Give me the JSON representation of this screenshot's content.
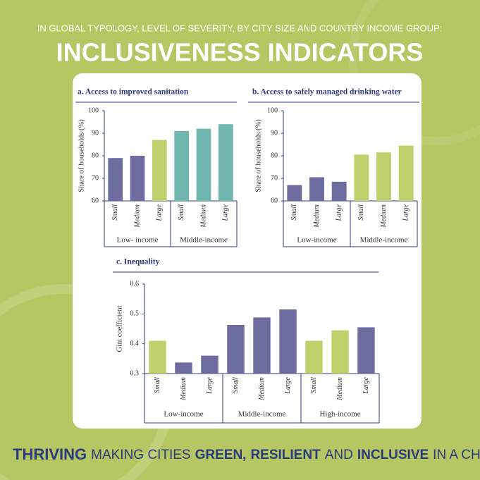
{
  "header": {
    "kicker": "IN GLOBAL TYPOLOGY, LEVEL OF SEVERITY, BY CITY SIZE AND COUNTRY INCOME GROUP:",
    "title": "INCLUSIVENESS INDICATORS"
  },
  "footer": {
    "segments": [
      {
        "text": "THRIVING",
        "bold": true
      },
      {
        "text": "MAKING CITIES",
        "bold": false
      },
      {
        "text": "GREEN,",
        "bold": true
      },
      {
        "text": "RESILIENT",
        "bold": true
      },
      {
        "text": "AND",
        "bold": false
      },
      {
        "text": "INCLUSIVE",
        "bold": true
      },
      {
        "text": "IN A CHANGING CLIMATE",
        "bold": false
      }
    ]
  },
  "chart_data": [
    {
      "type": "bar",
      "title": "a. Access to improved sanitation",
      "y_label": "Share of households (%)",
      "categories": [
        "Small",
        "Medium",
        "Large",
        "Small",
        "Medium",
        "Large"
      ],
      "groups": [
        "Low- income",
        "Middle-income"
      ],
      "values": [
        79,
        80,
        87,
        91,
        92,
        94
      ],
      "colors": [
        "#6b6d9f",
        "#6b6d9f",
        "#bfd16c",
        "#6fb7ae",
        "#6fb7ae",
        "#6fb7ae"
      ],
      "ylim": [
        60,
        100
      ],
      "yticks": [
        60,
        70,
        80,
        90,
        100
      ]
    },
    {
      "type": "bar",
      "title": "b. Access to safely managed drinking water",
      "y_label": "Share of households (%)",
      "categories": [
        "Small",
        "Medium",
        "Large",
        "Small",
        "Medium",
        "Large"
      ],
      "groups": [
        "Low-income",
        "Middle-income"
      ],
      "values": [
        67,
        70.5,
        68.5,
        80.5,
        81.5,
        84.5
      ],
      "colors": [
        "#6b6d9f",
        "#6b6d9f",
        "#6b6d9f",
        "#bfd16c",
        "#bfd16c",
        "#bfd16c"
      ],
      "ylim": [
        60,
        100
      ],
      "yticks": [
        60,
        70,
        80,
        90,
        100
      ]
    },
    {
      "type": "bar",
      "title": "c. Inequality",
      "y_label": "Gini coefficient",
      "categories": [
        "Small",
        "Medium",
        "Large",
        "Small",
        "Medium",
        "Large",
        "Small",
        "Medium",
        "Large"
      ],
      "groups": [
        "Low-income",
        "Middle-income",
        "High-income"
      ],
      "values": [
        0.41,
        0.337,
        0.36,
        0.463,
        0.488,
        0.515,
        0.41,
        0.445,
        0.455
      ],
      "colors": [
        "#bfd16c",
        "#6b6d9f",
        "#6b6d9f",
        "#6b6d9f",
        "#6b6d9f",
        "#6b6d9f",
        "#bfd16c",
        "#bfd16c",
        "#6b6d9f"
      ],
      "ylim": [
        0.3,
        0.6
      ],
      "yticks": [
        0.3,
        0.4,
        0.5,
        0.6
      ]
    }
  ]
}
